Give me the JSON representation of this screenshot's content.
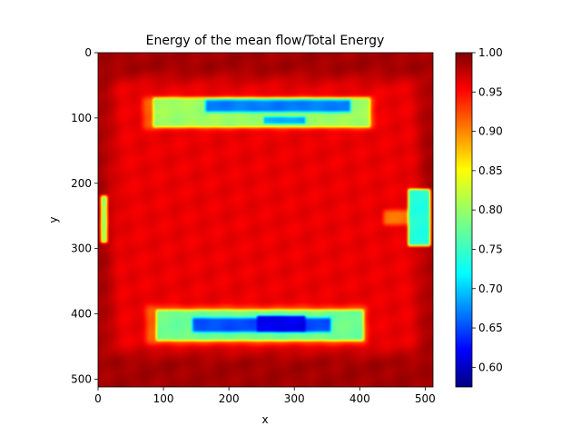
{
  "chart_data": {
    "type": "heatmap",
    "title": "Energy of the mean flow/Total Energy",
    "xlabel": "x",
    "ylabel": "y",
    "xlim": [
      0,
      512
    ],
    "ylim": [
      512,
      0
    ],
    "xticks": [
      0,
      100,
      200,
      300,
      400,
      500
    ],
    "yticks": [
      0,
      100,
      200,
      300,
      400,
      500
    ],
    "colormap": "jet",
    "colorbar": {
      "min": 0.575,
      "max": 1.0,
      "ticks": [
        1.0,
        0.95,
        0.9,
        0.85,
        0.8,
        0.75,
        0.7,
        0.65,
        0.6
      ],
      "tick_labels": [
        "1.00",
        "0.95",
        "0.90",
        "0.85",
        "0.80",
        "0.75",
        "0.70",
        "0.65",
        "0.60"
      ]
    },
    "background_value": 0.985,
    "regions": [
      {
        "x": [
          0,
          512
        ],
        "y": [
          20,
          480
        ],
        "value": 0.955,
        "feather": 40
      },
      {
        "x": [
          60,
          430
        ],
        "y": [
          60,
          125
        ],
        "value": 0.91,
        "feather": 16
      },
      {
        "x": [
          80,
          420
        ],
        "y": [
          65,
          118
        ],
        "value": 0.8,
        "feather": 8
      },
      {
        "x": [
          160,
          390
        ],
        "y": [
          68,
          95
        ],
        "value": 0.68,
        "feather": 8
      },
      {
        "x": [
          250,
          320
        ],
        "y": [
          95,
          112
        ],
        "value": 0.7,
        "feather": 6
      },
      {
        "x": [
          65,
          420
        ],
        "y": [
          380,
          455
        ],
        "value": 0.91,
        "feather": 16
      },
      {
        "x": [
          85,
          410
        ],
        "y": [
          390,
          445
        ],
        "value": 0.78,
        "feather": 8
      },
      {
        "x": [
          140,
          360
        ],
        "y": [
          402,
          432
        ],
        "value": 0.66,
        "feather": 8
      },
      {
        "x": [
          240,
          320
        ],
        "y": [
          400,
          430
        ],
        "value": 0.62,
        "feather": 6
      },
      {
        "x": [
          0,
          18
        ],
        "y": [
          215,
          295
        ],
        "value": 0.8,
        "feather": 8
      },
      {
        "x": [
          430,
          512
        ],
        "y": [
          235,
          270
        ],
        "value": 0.9,
        "feather": 12
      },
      {
        "x": [
          470,
          512
        ],
        "y": [
          205,
          300
        ],
        "value": 0.75,
        "feather": 8
      }
    ]
  }
}
